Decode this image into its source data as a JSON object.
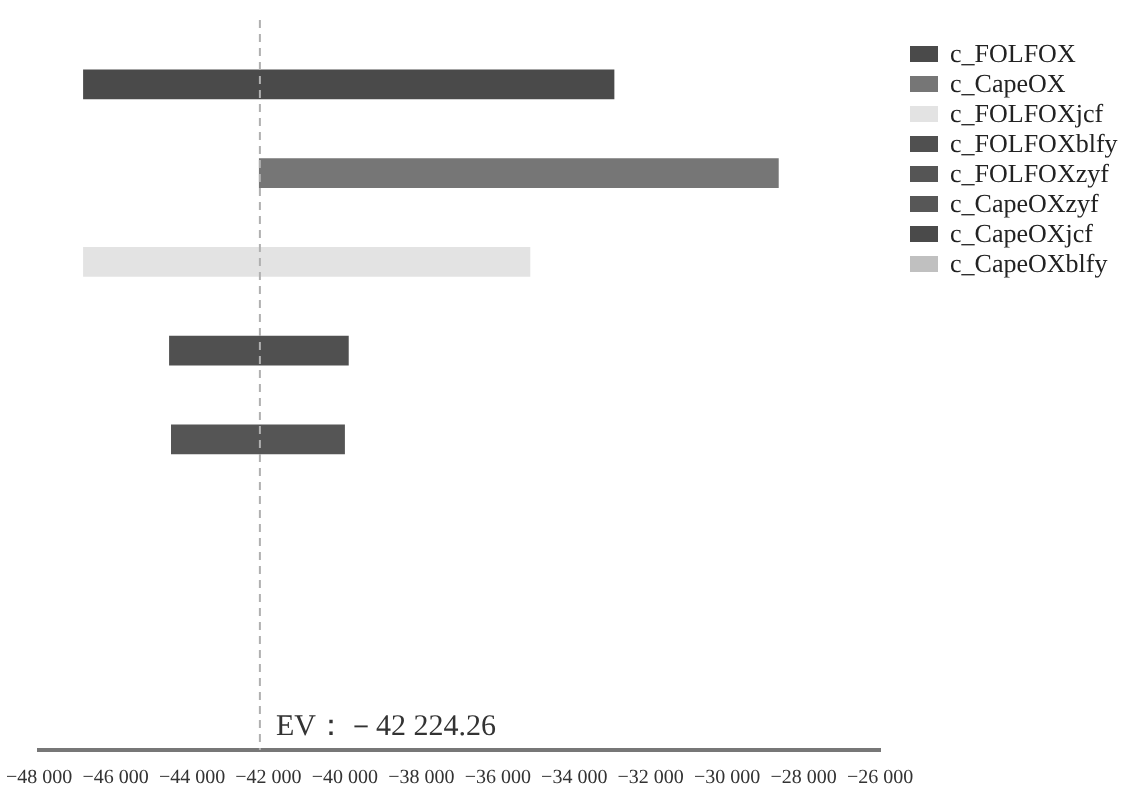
{
  "chart_data": {
    "type": "bar",
    "orientation": "horizontal",
    "categories": [
      null,
      null,
      null,
      null,
      null,
      null,
      null,
      null
    ],
    "series": [
      {
        "name": "c_FOLFOX",
        "color": "#4a4a4a",
        "base": [
          -46850,
          null,
          null,
          null,
          null,
          null,
          null,
          null
        ],
        "values": [
          13900,
          null,
          null,
          null,
          null,
          null,
          null,
          null
        ]
      },
      {
        "name": "c_CapeOX",
        "color": "#767676",
        "base": [
          null,
          -42250,
          null,
          null,
          null,
          null,
          null,
          null
        ],
        "values": [
          null,
          13600,
          null,
          null,
          null,
          null,
          null,
          null
        ]
      },
      {
        "name": "c_FOLFOXjcf",
        "color": "#e3e3e3",
        "base": [
          null,
          null,
          -46850,
          null,
          null,
          null,
          null,
          null
        ],
        "values": [
          null,
          null,
          11700,
          null,
          null,
          null,
          null,
          null
        ]
      },
      {
        "name": "c_FOLFOXblfy",
        "color": "#505050",
        "base": [
          null,
          null,
          null,
          -44600,
          null,
          null,
          null,
          null
        ],
        "values": [
          null,
          null,
          null,
          4700,
          null,
          null,
          null,
          null
        ]
      },
      {
        "name": "c_FOLFOXzyf",
        "color": "#555555",
        "base": [
          null,
          null,
          null,
          null,
          -44550,
          null,
          null,
          null
        ],
        "values": [
          null,
          null,
          null,
          null,
          4550,
          null,
          null,
          null
        ]
      },
      {
        "name": "c_CapeOXzyf",
        "color": "#575757",
        "values": [
          null,
          null,
          null,
          null,
          null,
          null,
          null,
          null
        ]
      },
      {
        "name": "c_CapeOXjcf",
        "color": "#4a4a4a",
        "values": [
          null,
          null,
          null,
          null,
          null,
          null,
          null,
          null
        ]
      },
      {
        "name": "c_CapeOXblfy",
        "color": "#c0c0c0",
        "values": [
          null,
          null,
          null,
          null,
          null,
          null,
          null,
          null
        ]
      }
    ],
    "xlim": [
      -48000,
      -26000
    ],
    "xticks": [
      {
        "value": -48000,
        "label": "−48 000"
      },
      {
        "value": -46000,
        "label": "−46 000"
      },
      {
        "value": -44000,
        "label": "−44 000"
      },
      {
        "value": -42000,
        "label": "−42 000"
      },
      {
        "value": -40000,
        "label": "−40 000"
      },
      {
        "value": -38000,
        "label": "−38 000"
      },
      {
        "value": -36000,
        "label": "−36 000"
      },
      {
        "value": -34000,
        "label": "−34 000"
      },
      {
        "value": -32000,
        "label": "−32 000"
      },
      {
        "value": -30000,
        "label": "−30 000"
      },
      {
        "value": -28000,
        "label": "−28 000"
      },
      {
        "value": -26000,
        "label": "−26 000"
      }
    ],
    "ref_lines": [
      {
        "axis": "x",
        "value": -42224.26,
        "label": "EV：－42 224.26",
        "color": "#b0b0b0",
        "line_style": "dashed"
      }
    ],
    "tick_labels": "x",
    "grid": false,
    "legend": "top right"
  }
}
